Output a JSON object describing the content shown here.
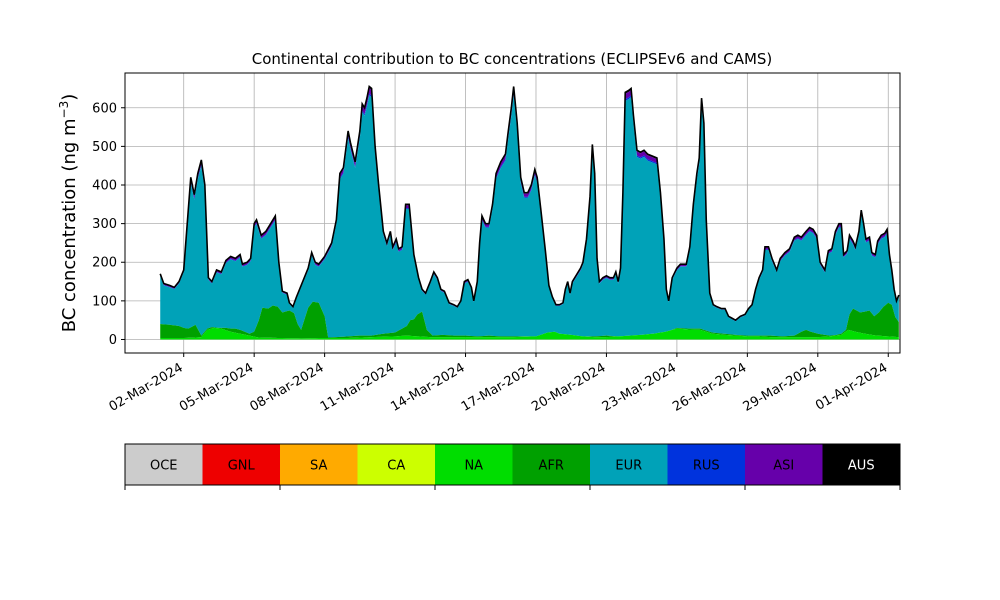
{
  "chart_data": {
    "type": "area",
    "stacked": true,
    "title": "Continental contribution to BC concentrations (ECLIPSEv6 and CAMS)",
    "ylabel_main": "BC concentration (ng m",
    "ylabel_sup": "−3",
    "ylabel_close": ")",
    "xlabel": "",
    "ylim": [
      -35,
      690
    ],
    "yticks": [
      0,
      100,
      200,
      300,
      400,
      500,
      600
    ],
    "xlim": [
      -1.5,
      31.5
    ],
    "x_start": "2024-03-01",
    "x_end": "2024-04-01",
    "xticks": [
      {
        "x": 1,
        "label": "02-Mar-2024"
      },
      {
        "x": 4,
        "label": "05-Mar-2024"
      },
      {
        "x": 7,
        "label": "08-Mar-2024"
      },
      {
        "x": 10,
        "label": "11-Mar-2024"
      },
      {
        "x": 13,
        "label": "14-Mar-2024"
      },
      {
        "x": 16,
        "label": "17-Mar-2024"
      },
      {
        "x": 19,
        "label": "20-Mar-2024"
      },
      {
        "x": 22,
        "label": "23-Mar-2024"
      },
      {
        "x": 25,
        "label": "26-Mar-2024"
      },
      {
        "x": 28,
        "label": "29-Mar-2024"
      },
      {
        "x": 31,
        "label": "01-Apr-2024"
      }
    ],
    "grid": true,
    "stack_order": [
      "NA",
      "AFR",
      "EUR",
      "RUS",
      "ASI",
      "AUS"
    ],
    "total": [
      [
        0.0,
        170
      ],
      [
        0.15,
        145
      ],
      [
        0.4,
        140
      ],
      [
        0.6,
        135
      ],
      [
        0.8,
        150
      ],
      [
        1.0,
        180
      ],
      [
        1.15,
        300
      ],
      [
        1.3,
        420
      ],
      [
        1.45,
        375
      ],
      [
        1.6,
        430
      ],
      [
        1.75,
        465
      ],
      [
        1.9,
        400
      ],
      [
        2.05,
        160
      ],
      [
        2.2,
        150
      ],
      [
        2.4,
        180
      ],
      [
        2.6,
        175
      ],
      [
        2.8,
        205
      ],
      [
        3.0,
        215
      ],
      [
        3.2,
        210
      ],
      [
        3.4,
        220
      ],
      [
        3.5,
        195
      ],
      [
        3.7,
        200
      ],
      [
        3.85,
        210
      ],
      [
        4.0,
        300
      ],
      [
        4.1,
        310
      ],
      [
        4.3,
        270
      ],
      [
        4.5,
        280
      ],
      [
        4.7,
        300
      ],
      [
        4.9,
        320
      ],
      [
        5.05,
        200
      ],
      [
        5.2,
        125
      ],
      [
        5.4,
        120
      ],
      [
        5.5,
        95
      ],
      [
        5.65,
        85
      ],
      [
        5.8,
        110
      ],
      [
        6.0,
        140
      ],
      [
        6.3,
        185
      ],
      [
        6.45,
        225
      ],
      [
        6.6,
        200
      ],
      [
        6.75,
        195
      ],
      [
        7.0,
        215
      ],
      [
        7.3,
        250
      ],
      [
        7.5,
        310
      ],
      [
        7.65,
        430
      ],
      [
        7.8,
        445
      ],
      [
        8.0,
        540
      ],
      [
        8.1,
        510
      ],
      [
        8.3,
        460
      ],
      [
        8.5,
        540
      ],
      [
        8.6,
        610
      ],
      [
        8.7,
        600
      ],
      [
        8.8,
        625
      ],
      [
        8.9,
        655
      ],
      [
        9.0,
        650
      ],
      [
        9.15,
        500
      ],
      [
        9.3,
        400
      ],
      [
        9.5,
        280
      ],
      [
        9.65,
        250
      ],
      [
        9.8,
        280
      ],
      [
        9.9,
        240
      ],
      [
        10.05,
        260
      ],
      [
        10.15,
        235
      ],
      [
        10.3,
        240
      ],
      [
        10.45,
        350
      ],
      [
        10.6,
        350
      ],
      [
        10.8,
        220
      ],
      [
        11.0,
        160
      ],
      [
        11.15,
        130
      ],
      [
        11.3,
        120
      ],
      [
        11.5,
        150
      ],
      [
        11.65,
        175
      ],
      [
        11.8,
        160
      ],
      [
        11.95,
        130
      ],
      [
        12.1,
        125
      ],
      [
        12.3,
        95
      ],
      [
        12.5,
        90
      ],
      [
        12.65,
        85
      ],
      [
        12.8,
        100
      ],
      [
        12.95,
        150
      ],
      [
        13.1,
        155
      ],
      [
        13.25,
        135
      ],
      [
        13.35,
        100
      ],
      [
        13.5,
        150
      ],
      [
        13.6,
        250
      ],
      [
        13.7,
        320
      ],
      [
        13.85,
        300
      ],
      [
        14.0,
        300
      ],
      [
        14.15,
        350
      ],
      [
        14.3,
        430
      ],
      [
        14.5,
        460
      ],
      [
        14.7,
        480
      ],
      [
        14.8,
        530
      ],
      [
        14.95,
        600
      ],
      [
        15.05,
        655
      ],
      [
        15.2,
        560
      ],
      [
        15.35,
        420
      ],
      [
        15.5,
        380
      ],
      [
        15.65,
        380
      ],
      [
        15.8,
        400
      ],
      [
        15.95,
        440
      ],
      [
        16.05,
        420
      ],
      [
        16.2,
        340
      ],
      [
        16.4,
        230
      ],
      [
        16.55,
        140
      ],
      [
        16.7,
        110
      ],
      [
        16.85,
        90
      ],
      [
        17.0,
        90
      ],
      [
        17.15,
        95
      ],
      [
        17.25,
        130
      ],
      [
        17.35,
        150
      ],
      [
        17.45,
        120
      ],
      [
        17.55,
        150
      ],
      [
        17.7,
        165
      ],
      [
        17.9,
        185
      ],
      [
        18.0,
        200
      ],
      [
        18.15,
        260
      ],
      [
        18.3,
        370
      ],
      [
        18.4,
        505
      ],
      [
        18.5,
        430
      ],
      [
        18.6,
        210
      ],
      [
        18.7,
        150
      ],
      [
        18.85,
        160
      ],
      [
        19.0,
        165
      ],
      [
        19.15,
        160
      ],
      [
        19.3,
        160
      ],
      [
        19.4,
        175
      ],
      [
        19.5,
        150
      ],
      [
        19.6,
        185
      ],
      [
        19.7,
        380
      ],
      [
        19.8,
        640
      ],
      [
        19.95,
        645
      ],
      [
        20.05,
        650
      ],
      [
        20.15,
        580
      ],
      [
        20.3,
        490
      ],
      [
        20.45,
        485
      ],
      [
        20.6,
        490
      ],
      [
        20.75,
        480
      ],
      [
        20.95,
        475
      ],
      [
        21.15,
        470
      ],
      [
        21.3,
        380
      ],
      [
        21.45,
        260
      ],
      [
        21.55,
        130
      ],
      [
        21.65,
        100
      ],
      [
        21.8,
        160
      ],
      [
        22.0,
        185
      ],
      [
        22.15,
        195
      ],
      [
        22.4,
        195
      ],
      [
        22.55,
        240
      ],
      [
        22.7,
        350
      ],
      [
        22.85,
        430
      ],
      [
        22.95,
        470
      ],
      [
        23.05,
        625
      ],
      [
        23.15,
        560
      ],
      [
        23.25,
        310
      ],
      [
        23.4,
        120
      ],
      [
        23.55,
        90
      ],
      [
        23.7,
        85
      ],
      [
        23.9,
        80
      ],
      [
        24.05,
        80
      ],
      [
        24.2,
        60
      ],
      [
        24.35,
        55
      ],
      [
        24.5,
        50
      ],
      [
        24.7,
        60
      ],
      [
        24.9,
        65
      ],
      [
        25.05,
        80
      ],
      [
        25.2,
        90
      ],
      [
        25.35,
        130
      ],
      [
        25.5,
        160
      ],
      [
        25.65,
        180
      ],
      [
        25.75,
        240
      ],
      [
        25.9,
        240
      ],
      [
        26.05,
        210
      ],
      [
        26.25,
        180
      ],
      [
        26.4,
        210
      ],
      [
        26.6,
        225
      ],
      [
        26.8,
        235
      ],
      [
        27.0,
        265
      ],
      [
        27.15,
        270
      ],
      [
        27.3,
        265
      ],
      [
        27.5,
        280
      ],
      [
        27.65,
        290
      ],
      [
        27.8,
        285
      ],
      [
        27.95,
        270
      ],
      [
        28.1,
        200
      ],
      [
        28.3,
        180
      ],
      [
        28.45,
        230
      ],
      [
        28.6,
        235
      ],
      [
        28.75,
        280
      ],
      [
        28.9,
        300
      ],
      [
        29.0,
        300
      ],
      [
        29.1,
        220
      ],
      [
        29.25,
        230
      ],
      [
        29.35,
        270
      ],
      [
        29.5,
        255
      ],
      [
        29.6,
        240
      ],
      [
        29.75,
        280
      ],
      [
        29.85,
        335
      ],
      [
        29.95,
        300
      ],
      [
        30.05,
        260
      ],
      [
        30.2,
        265
      ],
      [
        30.3,
        225
      ],
      [
        30.45,
        220
      ],
      [
        30.55,
        255
      ],
      [
        30.7,
        270
      ],
      [
        30.85,
        275
      ],
      [
        30.95,
        285
      ],
      [
        31.05,
        220
      ],
      [
        31.15,
        180
      ],
      [
        31.25,
        130
      ],
      [
        31.35,
        100
      ],
      [
        31.45,
        115
      ]
    ],
    "afr_top": [
      [
        0.0,
        40
      ],
      [
        0.4,
        38
      ],
      [
        0.8,
        35
      ],
      [
        1.0,
        30
      ],
      [
        1.2,
        28
      ],
      [
        1.5,
        38
      ],
      [
        1.75,
        10
      ],
      [
        2.0,
        28
      ],
      [
        2.2,
        32
      ],
      [
        2.5,
        30
      ],
      [
        2.8,
        30
      ],
      [
        3.0,
        28
      ],
      [
        3.2,
        28
      ],
      [
        3.4,
        25
      ],
      [
        3.6,
        20
      ],
      [
        3.8,
        15
      ],
      [
        4.0,
        20
      ],
      [
        4.2,
        50
      ],
      [
        4.35,
        82
      ],
      [
        4.6,
        80
      ],
      [
        4.8,
        88
      ],
      [
        5.0,
        85
      ],
      [
        5.2,
        70
      ],
      [
        5.5,
        75
      ],
      [
        5.7,
        68
      ],
      [
        5.85,
        40
      ],
      [
        6.0,
        25
      ],
      [
        6.3,
        82
      ],
      [
        6.5,
        98
      ],
      [
        6.75,
        95
      ],
      [
        7.0,
        60
      ],
      [
        7.15,
        5
      ],
      [
        7.5,
        6
      ],
      [
        8.0,
        8
      ],
      [
        8.5,
        10
      ],
      [
        9.0,
        10
      ],
      [
        9.5,
        15
      ],
      [
        10.0,
        18
      ],
      [
        10.5,
        35
      ],
      [
        10.65,
        50
      ],
      [
        10.8,
        52
      ],
      [
        10.95,
        65
      ],
      [
        11.15,
        72
      ],
      [
        11.35,
        25
      ],
      [
        11.6,
        10
      ],
      [
        12.0,
        12
      ],
      [
        12.5,
        10
      ],
      [
        13.0,
        10
      ],
      [
        13.5,
        8
      ],
      [
        14.0,
        10
      ],
      [
        14.5,
        8
      ],
      [
        15.0,
        8
      ],
      [
        15.5,
        8
      ],
      [
        16.0,
        8
      ],
      [
        16.5,
        10
      ],
      [
        17.0,
        8
      ],
      [
        17.5,
        10
      ],
      [
        18.0,
        8
      ],
      [
        18.5,
        8
      ],
      [
        19.0,
        10
      ],
      [
        19.5,
        8
      ],
      [
        20.0,
        10
      ],
      [
        20.5,
        12
      ],
      [
        21.0,
        15
      ],
      [
        21.5,
        18
      ],
      [
        22.0,
        30
      ],
      [
        22.5,
        28
      ],
      [
        23.0,
        28
      ],
      [
        23.5,
        18
      ],
      [
        24.0,
        15
      ],
      [
        24.5,
        12
      ],
      [
        25.0,
        10
      ],
      [
        25.5,
        10
      ],
      [
        26.0,
        10
      ],
      [
        26.5,
        8
      ],
      [
        27.0,
        10
      ],
      [
        27.3,
        20
      ],
      [
        27.5,
        25
      ],
      [
        27.7,
        20
      ],
      [
        28.0,
        15
      ],
      [
        28.3,
        12
      ],
      [
        28.5,
        10
      ],
      [
        28.8,
        12
      ],
      [
        29.0,
        15
      ],
      [
        29.2,
        25
      ],
      [
        29.35,
        65
      ],
      [
        29.5,
        80
      ],
      [
        29.8,
        70
      ],
      [
        30.0,
        72
      ],
      [
        30.2,
        75
      ],
      [
        30.4,
        60
      ],
      [
        30.6,
        70
      ],
      [
        30.8,
        85
      ],
      [
        31.0,
        95
      ],
      [
        31.15,
        90
      ],
      [
        31.3,
        58
      ],
      [
        31.45,
        45
      ]
    ],
    "na_top": [
      [
        0.0,
        4
      ],
      [
        0.5,
        4
      ],
      [
        1.0,
        4
      ],
      [
        1.5,
        5
      ],
      [
        1.75,
        6
      ],
      [
        2.0,
        25
      ],
      [
        2.3,
        30
      ],
      [
        2.6,
        28
      ],
      [
        3.0,
        20
      ],
      [
        3.4,
        15
      ],
      [
        3.8,
        10
      ],
      [
        4.2,
        5
      ],
      [
        5.0,
        4
      ],
      [
        6.0,
        3
      ],
      [
        7.0,
        4
      ],
      [
        8.0,
        4
      ],
      [
        9.0,
        6
      ],
      [
        10.0,
        8
      ],
      [
        10.5,
        10
      ],
      [
        11.0,
        8
      ],
      [
        11.5,
        6
      ],
      [
        12.0,
        6
      ],
      [
        13.0,
        6
      ],
      [
        14.0,
        6
      ],
      [
        15.0,
        6
      ],
      [
        16.0,
        8
      ],
      [
        16.5,
        18
      ],
      [
        16.8,
        20
      ],
      [
        17.0,
        15
      ],
      [
        17.5,
        12
      ],
      [
        18.0,
        8
      ],
      [
        18.5,
        6
      ],
      [
        19.0,
        6
      ],
      [
        19.5,
        8
      ],
      [
        20.0,
        10
      ],
      [
        20.5,
        12
      ],
      [
        21.0,
        15
      ],
      [
        21.5,
        20
      ],
      [
        22.0,
        28
      ],
      [
        22.5,
        26
      ],
      [
        23.0,
        25
      ],
      [
        23.5,
        15
      ],
      [
        24.0,
        12
      ],
      [
        24.5,
        10
      ],
      [
        25.0,
        8
      ],
      [
        25.5,
        8
      ],
      [
        26.0,
        6
      ],
      [
        27.0,
        6
      ],
      [
        28.0,
        6
      ],
      [
        28.5,
        8
      ],
      [
        29.0,
        12
      ],
      [
        29.3,
        25
      ],
      [
        29.6,
        20
      ],
      [
        30.0,
        15
      ],
      [
        30.5,
        10
      ],
      [
        31.0,
        8
      ],
      [
        31.45,
        6
      ]
    ],
    "layers": [
      {
        "name": "NA",
        "color": "#00dd00"
      },
      {
        "name": "AFR",
        "color": "#00a000"
      },
      {
        "name": "EUR",
        "color": "#00a2b8"
      },
      {
        "name": "RUS",
        "color": "#0033dd"
      },
      {
        "name": "ASI",
        "color": "#6600aa"
      },
      {
        "name": "AUS",
        "color": "#000000"
      }
    ],
    "legend": [
      {
        "name": "OCE",
        "color": "#cccccc"
      },
      {
        "name": "GNL",
        "color": "#ee0000"
      },
      {
        "name": "SA",
        "color": "#ffaa00"
      },
      {
        "name": "CA",
        "color": "#ccff00"
      },
      {
        "name": "NA",
        "color": "#00dd00"
      },
      {
        "name": "AFR",
        "color": "#00a000"
      },
      {
        "name": "EUR",
        "color": "#00a2b8"
      },
      {
        "name": "RUS",
        "color": "#0033dd"
      },
      {
        "name": "ASI",
        "color": "#6600aa"
      },
      {
        "name": "AUS",
        "color": "#000000"
      }
    ],
    "legend_placement": "bottom"
  }
}
